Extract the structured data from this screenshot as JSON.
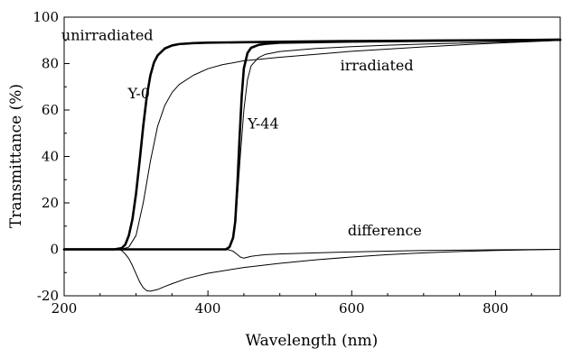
{
  "chart_data": {
    "type": "line",
    "xlabel": "Wavelength (nm)",
    "ylabel": "Transmittance (%)",
    "xlim": [
      200,
      890
    ],
    "ylim": [
      -20,
      100
    ],
    "xticks": [
      200,
      400,
      600,
      800
    ],
    "yticks": [
      -20,
      0,
      20,
      40,
      60,
      80,
      100
    ],
    "grid": false,
    "legend": "none",
    "annotations": [
      {
        "text": "unirradiated",
        "x": 260,
        "y": 92
      },
      {
        "text": "irradiated",
        "x": 635,
        "y": 79
      },
      {
        "text": "Y-0",
        "x": 304,
        "y": 67
      },
      {
        "text": "Y-44",
        "x": 477,
        "y": 54
      },
      {
        "text": "difference",
        "x": 646,
        "y": 8
      }
    ],
    "series": [
      {
        "id": "y0-unirradiated",
        "stroke": "#000000",
        "weight": "thick",
        "x": [
          200,
          270,
          280,
          285,
          290,
          295,
          300,
          305,
          310,
          315,
          320,
          325,
          330,
          340,
          350,
          360,
          380,
          400,
          450,
          500,
          600,
          700,
          800,
          890
        ],
        "y": [
          0,
          0,
          0.5,
          2,
          6,
          13,
          24,
          38,
          53,
          66,
          75,
          80.5,
          83.5,
          86.5,
          87.8,
          88.4,
          88.8,
          89,
          89.2,
          89.4,
          89.7,
          89.9,
          90.1,
          90.2
        ]
      },
      {
        "id": "y0-irradiated",
        "stroke": "#000000",
        "weight": "thin",
        "x": [
          200,
          280,
          290,
          300,
          310,
          320,
          330,
          340,
          350,
          360,
          380,
          400,
          420,
          450,
          500,
          550,
          600,
          700,
          800,
          890
        ],
        "y": [
          0,
          0,
          1,
          6,
          20,
          38,
          53,
          62,
          67.5,
          71,
          75,
          77.8,
          79.5,
          81.2,
          82.7,
          84,
          85.3,
          87.2,
          88.8,
          90
        ]
      },
      {
        "id": "y44-unirradiated",
        "stroke": "#000000",
        "weight": "thick",
        "x": [
          200,
          425,
          430,
          435,
          438,
          441,
          444,
          447,
          450,
          455,
          460,
          470,
          480,
          500,
          600,
          700,
          800,
          890
        ],
        "y": [
          0,
          0,
          1,
          5,
          12,
          28,
          48,
          66,
          78,
          84.5,
          86.8,
          88,
          88.5,
          89,
          89.5,
          89.8,
          90,
          90.3
        ]
      },
      {
        "id": "y44-irradiated",
        "stroke": "#000000",
        "weight": "thin",
        "x": [
          200,
          425,
          430,
          435,
          440,
          445,
          450,
          455,
          460,
          470,
          480,
          500,
          550,
          600,
          650,
          700,
          800,
          890
        ],
        "y": [
          0,
          0,
          1,
          5,
          18,
          40,
          60,
          73,
          79,
          82.5,
          84,
          85.2,
          86.5,
          87.3,
          87.9,
          88.4,
          89.2,
          90
        ]
      },
      {
        "id": "y0-difference",
        "stroke": "#000000",
        "weight": "thin",
        "x": [
          200,
          275,
          280,
          285,
          290,
          295,
          300,
          305,
          310,
          315,
          320,
          330,
          340,
          350,
          370,
          400,
          450,
          500,
          550,
          600,
          650,
          700,
          750,
          800,
          850,
          890
        ],
        "y": [
          0,
          0,
          -0.5,
          -2,
          -4,
          -7,
          -10.5,
          -14,
          -16.5,
          -17.8,
          -18,
          -17.3,
          -16,
          -14.8,
          -12.6,
          -10.3,
          -7.8,
          -6,
          -4.5,
          -3.3,
          -2.3,
          -1.5,
          -0.9,
          -0.5,
          -0.2,
          0
        ]
      },
      {
        "id": "y44-difference",
        "stroke": "#000000",
        "weight": "thin",
        "x": [
          200,
          425,
          430,
          435,
          440,
          445,
          450,
          455,
          460,
          470,
          480,
          500,
          550,
          600,
          650,
          700,
          800,
          890
        ],
        "y": [
          0,
          0,
          -0.3,
          -0.8,
          -2,
          -3.3,
          -3.8,
          -3.4,
          -3,
          -2.6,
          -2.3,
          -2,
          -1.5,
          -1.1,
          -0.8,
          -0.5,
          -0.2,
          0
        ]
      }
    ]
  }
}
